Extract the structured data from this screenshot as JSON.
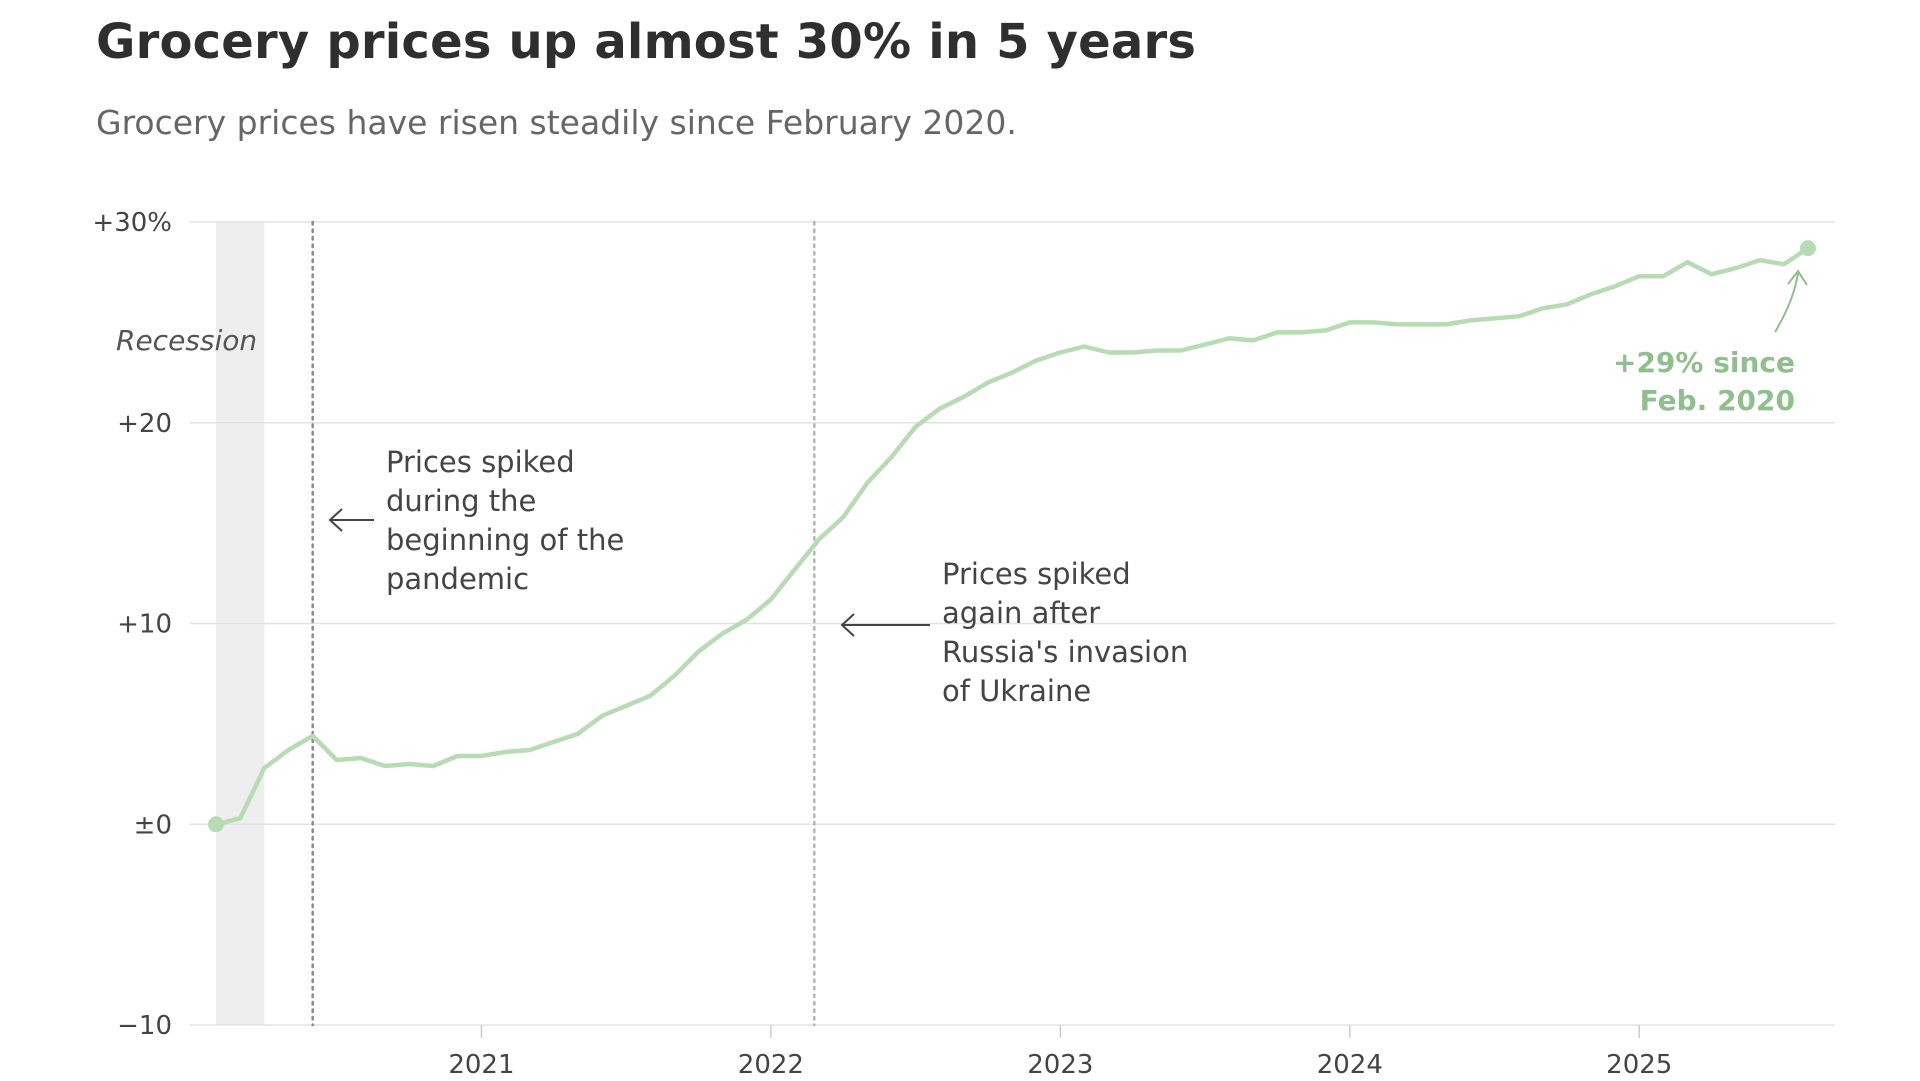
{
  "chart_data": {
    "type": "line",
    "title": "Grocery prices up almost 30% in 5 years",
    "subtitle": "Grocery prices have risen steadily since February 2020.",
    "xlabel": "",
    "ylabel": "",
    "x_range": [
      2020.083,
      2025.583
    ],
    "ylim": [
      -10,
      30
    ],
    "y_ticks": [
      {
        "value": 30,
        "label": "+30%"
      },
      {
        "value": 20,
        "label": "+20"
      },
      {
        "value": 10,
        "label": "+10"
      },
      {
        "value": 0,
        "label": "±0"
      },
      {
        "value": -10,
        "label": "−10"
      }
    ],
    "x_ticks": [
      {
        "value": 2021,
        "label": "2021"
      },
      {
        "value": 2022,
        "label": "2022"
      },
      {
        "value": 2023,
        "label": "2023"
      },
      {
        "value": 2024,
        "label": "2024"
      },
      {
        "value": 2025,
        "label": "2025"
      }
    ],
    "grid": true,
    "line_color": "#b7dcb4",
    "label_color": "#8fbf8c",
    "recession": {
      "start": 2020.083,
      "end": 2020.25,
      "label": "Recession"
    },
    "series": [
      {
        "name": "Grocery prices, change since Feb. 2020",
        "x": [
          2020.083,
          2020.167,
          2020.25,
          2020.333,
          2020.417,
          2020.5,
          2020.583,
          2020.667,
          2020.75,
          2020.833,
          2020.917,
          2021.0,
          2021.083,
          2021.167,
          2021.25,
          2021.333,
          2021.417,
          2021.5,
          2021.583,
          2021.667,
          2021.75,
          2021.833,
          2021.917,
          2022.0,
          2022.083,
          2022.167,
          2022.25,
          2022.333,
          2022.417,
          2022.5,
          2022.583,
          2022.667,
          2022.75,
          2022.833,
          2022.917,
          2023.0,
          2023.083,
          2023.167,
          2023.25,
          2023.333,
          2023.417,
          2023.5,
          2023.583,
          2023.667,
          2023.75,
          2023.833,
          2023.917,
          2024.0,
          2024.083,
          2024.167,
          2024.25,
          2024.333,
          2024.417,
          2024.5,
          2024.583,
          2024.667,
          2024.75,
          2024.833,
          2024.917,
          2025.0,
          2025.083,
          2025.167,
          2025.25,
          2025.333,
          2025.417,
          2025.5,
          2025.583
        ],
        "values": [
          0,
          0.3,
          2.8,
          3.7,
          4.4,
          3.2,
          3.3,
          2.9,
          3.0,
          2.9,
          3.4,
          3.4,
          3.6,
          3.7,
          4.1,
          4.5,
          5.4,
          5.9,
          6.4,
          7.4,
          8.6,
          9.5,
          10.2,
          11.2,
          12.7,
          14.2,
          15.3,
          17.0,
          18.3,
          19.8,
          20.7,
          21.3,
          22.0,
          22.5,
          23.1,
          23.5,
          23.8,
          23.5,
          23.5,
          23.6,
          23.6,
          23.9,
          24.2,
          24.1,
          24.5,
          24.5,
          24.6,
          25.0,
          25.0,
          24.9,
          24.9,
          24.9,
          25.1,
          25.2,
          25.3,
          25.7,
          25.9,
          26.4,
          26.8,
          27.3,
          27.3,
          28.0,
          27.4,
          27.7,
          28.1,
          27.9,
          28.7
        ]
      }
    ],
    "annotations": [
      {
        "x": 2020.417,
        "lines": [
          "Prices spiked",
          "during the",
          "beginning of the",
          "pandemic"
        ]
      },
      {
        "x": 2022.15,
        "lines": [
          "Prices spiked",
          "again after",
          "Russia's invasion",
          "of Ukraine"
        ]
      }
    ],
    "end_label": {
      "lines": [
        "+29% since",
        "Feb. 2020"
      ]
    }
  }
}
